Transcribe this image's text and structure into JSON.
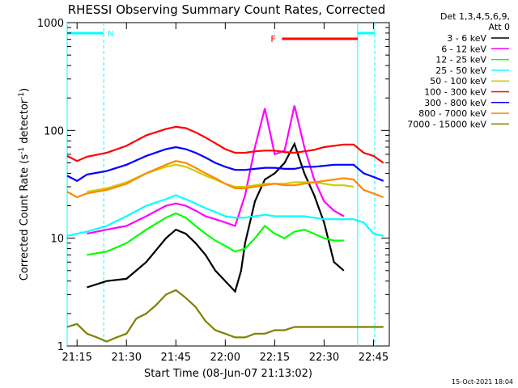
{
  "chart_data": {
    "type": "line",
    "title": "RHESSI Observing Summary Count Rates, Corrected",
    "xlabel": "Start Time (08-Jun-07 21:13:02)",
    "ylabel_main": "Corrected Count Rate (s",
    "ylabel_sup1": "-1",
    "ylabel_mid": " detector",
    "ylabel_sup2": "-1",
    "ylabel_end": ")",
    "y_scale": "log",
    "ylim": [
      1,
      1000
    ],
    "xlim_minutes": [
      21.2,
      22.83
    ],
    "x_ticks": [
      {
        "label": "21:15",
        "t": 21.25
      },
      {
        "label": "21:30",
        "t": 21.5
      },
      {
        "label": "21:45",
        "t": 21.75
      },
      {
        "label": "22:00",
        "t": 22.0
      },
      {
        "label": "22:15",
        "t": 22.25
      },
      {
        "label": "22:30",
        "t": 22.5
      },
      {
        "label": "22:45",
        "t": 22.75
      }
    ],
    "y_ticks": [
      {
        "label": "1",
        "v": 1
      },
      {
        "label": "10",
        "v": 10
      },
      {
        "label": "100",
        "v": 100
      },
      {
        "label": "1000",
        "v": 1000
      }
    ],
    "legend_header": [
      "Det 1,3,4,5,6,9,",
      "Att 0"
    ],
    "legend_position": "right",
    "night_label": "N",
    "flare_label": "F",
    "night_intervals": [
      [
        21.2,
        21.385
      ],
      [
        22.67,
        22.82
      ]
    ],
    "flare_interval": [
      22.287,
      22.67
    ],
    "series": [
      {
        "name": "3 - 6 keV",
        "color": "#000000",
        "points": [
          [
            21.3,
            3.5
          ],
          [
            21.4,
            4
          ],
          [
            21.5,
            4.2
          ],
          [
            21.6,
            6
          ],
          [
            21.7,
            10
          ],
          [
            21.75,
            12
          ],
          [
            21.8,
            11
          ],
          [
            21.85,
            9
          ],
          [
            21.9,
            7
          ],
          [
            21.95,
            5
          ],
          [
            22.0,
            4
          ],
          [
            22.05,
            3.2
          ],
          [
            22.08,
            5
          ],
          [
            22.1,
            9
          ],
          [
            22.15,
            22
          ],
          [
            22.2,
            35
          ],
          [
            22.25,
            40
          ],
          [
            22.3,
            50
          ],
          [
            22.35,
            75
          ],
          [
            22.4,
            40
          ],
          [
            22.45,
            25
          ],
          [
            22.5,
            14
          ],
          [
            22.55,
            6
          ],
          [
            22.6,
            5
          ]
        ]
      },
      {
        "name": "6 - 12 keV",
        "color": "#ff00ff",
        "points": [
          [
            21.3,
            11
          ],
          [
            21.4,
            12
          ],
          [
            21.5,
            13
          ],
          [
            21.6,
            16
          ],
          [
            21.7,
            20
          ],
          [
            21.75,
            21
          ],
          [
            21.8,
            20
          ],
          [
            21.85,
            18
          ],
          [
            21.9,
            16
          ],
          [
            21.95,
            15
          ],
          [
            22.0,
            14
          ],
          [
            22.05,
            13
          ],
          [
            22.1,
            25
          ],
          [
            22.15,
            70
          ],
          [
            22.2,
            160
          ],
          [
            22.25,
            60
          ],
          [
            22.3,
            65
          ],
          [
            22.35,
            170
          ],
          [
            22.4,
            70
          ],
          [
            22.45,
            35
          ],
          [
            22.5,
            22
          ],
          [
            22.55,
            18
          ],
          [
            22.6,
            16
          ]
        ]
      },
      {
        "name": "12 - 25 keV",
        "color": "#00ff00",
        "points": [
          [
            21.3,
            7
          ],
          [
            21.4,
            7.5
          ],
          [
            21.5,
            9
          ],
          [
            21.6,
            12
          ],
          [
            21.7,
            15.5
          ],
          [
            21.75,
            17
          ],
          [
            21.8,
            15.5
          ],
          [
            21.85,
            13
          ],
          [
            21.9,
            11
          ],
          [
            21.95,
            9.5
          ],
          [
            22.0,
            8.5
          ],
          [
            22.05,
            7.5
          ],
          [
            22.1,
            8
          ],
          [
            22.15,
            10
          ],
          [
            22.2,
            13
          ],
          [
            22.25,
            11
          ],
          [
            22.3,
            10
          ],
          [
            22.35,
            11.5
          ],
          [
            22.4,
            12
          ],
          [
            22.45,
            11
          ],
          [
            22.5,
            10
          ],
          [
            22.55,
            9.5
          ],
          [
            22.6,
            9.5
          ]
        ]
      },
      {
        "name": "25 - 50 keV",
        "color": "#00ffff",
        "points": [
          [
            21.2,
            10.5
          ],
          [
            21.3,
            11.5
          ],
          [
            21.4,
            13
          ],
          [
            21.5,
            16
          ],
          [
            21.6,
            20
          ],
          [
            21.7,
            23
          ],
          [
            21.75,
            25
          ],
          [
            21.8,
            23
          ],
          [
            21.85,
            21
          ],
          [
            21.9,
            19
          ],
          [
            21.95,
            17.5
          ],
          [
            22.0,
            16
          ],
          [
            22.05,
            15.5
          ],
          [
            22.1,
            15.5
          ],
          [
            22.15,
            16
          ],
          [
            22.2,
            16.5
          ],
          [
            22.25,
            16
          ],
          [
            22.3,
            16
          ],
          [
            22.35,
            16
          ],
          [
            22.4,
            16
          ],
          [
            22.45,
            15.5
          ],
          [
            22.5,
            15
          ],
          [
            22.55,
            15
          ],
          [
            22.6,
            15
          ],
          [
            22.65,
            15
          ],
          [
            22.7,
            14
          ],
          [
            22.75,
            11
          ],
          [
            22.8,
            10.5
          ]
        ]
      },
      {
        "name": "50 - 100 keV",
        "color": "#cccc00",
        "points": [
          [
            21.3,
            27
          ],
          [
            21.4,
            29
          ],
          [
            21.5,
            33
          ],
          [
            21.6,
            40
          ],
          [
            21.7,
            46
          ],
          [
            21.75,
            48
          ],
          [
            21.8,
            46
          ],
          [
            21.85,
            42
          ],
          [
            21.9,
            38
          ],
          [
            21.95,
            35
          ],
          [
            22.0,
            32
          ],
          [
            22.05,
            30
          ],
          [
            22.1,
            30
          ],
          [
            22.15,
            31
          ],
          [
            22.2,
            32
          ],
          [
            22.25,
            32
          ],
          [
            22.3,
            32
          ],
          [
            22.35,
            33
          ],
          [
            22.4,
            33
          ],
          [
            22.45,
            33
          ],
          [
            22.5,
            32
          ],
          [
            22.55,
            31
          ],
          [
            22.6,
            31
          ],
          [
            22.65,
            30
          ]
        ]
      },
      {
        "name": "100 - 300 keV",
        "color": "#ff0000",
        "points": [
          [
            21.2,
            58
          ],
          [
            21.25,
            52
          ],
          [
            21.3,
            57
          ],
          [
            21.4,
            62
          ],
          [
            21.5,
            72
          ],
          [
            21.6,
            90
          ],
          [
            21.7,
            103
          ],
          [
            21.75,
            108
          ],
          [
            21.8,
            105
          ],
          [
            21.85,
            96
          ],
          [
            21.9,
            86
          ],
          [
            21.95,
            76
          ],
          [
            22.0,
            67
          ],
          [
            22.05,
            62
          ],
          [
            22.1,
            62
          ],
          [
            22.15,
            64
          ],
          [
            22.2,
            65
          ],
          [
            22.25,
            65
          ],
          [
            22.3,
            63
          ],
          [
            22.35,
            62
          ],
          [
            22.4,
            64
          ],
          [
            22.45,
            66
          ],
          [
            22.5,
            70
          ],
          [
            22.55,
            72
          ],
          [
            22.6,
            74
          ],
          [
            22.65,
            74
          ],
          [
            22.7,
            62
          ],
          [
            22.75,
            58
          ],
          [
            22.8,
            50
          ]
        ]
      },
      {
        "name": "300 - 800 keV",
        "color": "#0000ff",
        "points": [
          [
            21.2,
            38
          ],
          [
            21.25,
            34
          ],
          [
            21.3,
            39
          ],
          [
            21.4,
            42
          ],
          [
            21.5,
            48
          ],
          [
            21.6,
            58
          ],
          [
            21.7,
            67
          ],
          [
            21.75,
            70
          ],
          [
            21.8,
            67
          ],
          [
            21.85,
            62
          ],
          [
            21.9,
            56
          ],
          [
            21.95,
            50
          ],
          [
            22.0,
            46
          ],
          [
            22.05,
            43
          ],
          [
            22.1,
            43
          ],
          [
            22.15,
            44
          ],
          [
            22.2,
            45
          ],
          [
            22.25,
            45
          ],
          [
            22.3,
            44
          ],
          [
            22.35,
            44
          ],
          [
            22.4,
            46
          ],
          [
            22.45,
            46
          ],
          [
            22.5,
            47
          ],
          [
            22.55,
            48
          ],
          [
            22.6,
            48
          ],
          [
            22.65,
            48
          ],
          [
            22.7,
            40
          ],
          [
            22.75,
            37
          ],
          [
            22.8,
            34
          ]
        ]
      },
      {
        "name": "800 - 7000 keV",
        "color": "#ff8800",
        "points": [
          [
            21.2,
            27
          ],
          [
            21.25,
            24
          ],
          [
            21.3,
            26
          ],
          [
            21.4,
            28
          ],
          [
            21.5,
            32
          ],
          [
            21.6,
            40
          ],
          [
            21.7,
            48
          ],
          [
            21.75,
            52
          ],
          [
            21.8,
            50
          ],
          [
            21.85,
            45
          ],
          [
            21.9,
            40
          ],
          [
            21.95,
            36
          ],
          [
            22.0,
            32
          ],
          [
            22.05,
            29
          ],
          [
            22.1,
            29
          ],
          [
            22.15,
            30
          ],
          [
            22.2,
            31
          ],
          [
            22.25,
            32
          ],
          [
            22.3,
            31
          ],
          [
            22.35,
            31
          ],
          [
            22.4,
            32
          ],
          [
            22.45,
            33
          ],
          [
            22.5,
            34
          ],
          [
            22.55,
            35
          ],
          [
            22.6,
            36
          ],
          [
            22.65,
            35
          ],
          [
            22.7,
            28
          ],
          [
            22.75,
            26
          ],
          [
            22.8,
            24
          ]
        ]
      },
      {
        "name": "7000 - 15000 keV",
        "color": "#808000",
        "points": [
          [
            21.2,
            1.5
          ],
          [
            21.25,
            1.6
          ],
          [
            21.3,
            1.3
          ],
          [
            21.35,
            1.2
          ],
          [
            21.4,
            1.1
          ],
          [
            21.45,
            1.2
          ],
          [
            21.5,
            1.3
          ],
          [
            21.55,
            1.8
          ],
          [
            21.6,
            2.0
          ],
          [
            21.65,
            2.4
          ],
          [
            21.7,
            3.0
          ],
          [
            21.75,
            3.3
          ],
          [
            21.8,
            2.8
          ],
          [
            21.85,
            2.3
          ],
          [
            21.9,
            1.7
          ],
          [
            21.95,
            1.4
          ],
          [
            22.0,
            1.3
          ],
          [
            22.05,
            1.2
          ],
          [
            22.1,
            1.2
          ],
          [
            22.15,
            1.3
          ],
          [
            22.2,
            1.3
          ],
          [
            22.25,
            1.4
          ],
          [
            22.3,
            1.4
          ],
          [
            22.35,
            1.5
          ],
          [
            22.4,
            1.5
          ],
          [
            22.45,
            1.5
          ],
          [
            22.5,
            1.5
          ],
          [
            22.55,
            1.5
          ],
          [
            22.6,
            1.5
          ],
          [
            22.65,
            1.5
          ],
          [
            22.7,
            1.5
          ],
          [
            22.75,
            1.5
          ],
          [
            22.8,
            1.5
          ]
        ]
      }
    ]
  },
  "footer": {
    "timestamp": "15-Oct-2021 18:04"
  },
  "colors": {
    "night": "#00ffff",
    "flare": "#ff0000",
    "axis": "#000000"
  }
}
